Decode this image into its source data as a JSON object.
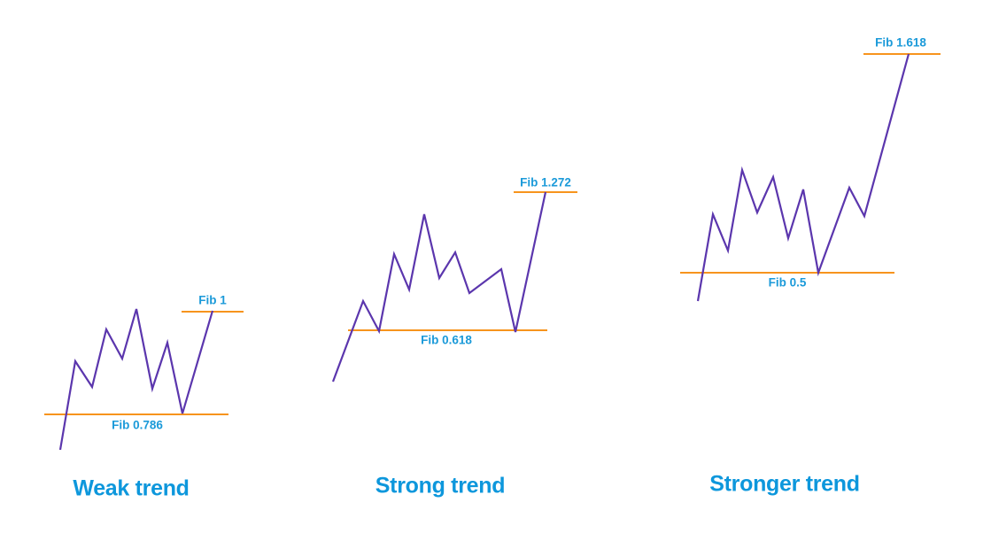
{
  "panels": [
    {
      "title": "Weak trend",
      "support": "Fib 0.786",
      "target": "Fib 1"
    },
    {
      "title": "Strong trend",
      "support": "Fib 0.618",
      "target": "Fib 1.272"
    },
    {
      "title": "Stronger trend",
      "support": "Fib 0.5",
      "target": "Fib 1.618"
    }
  ]
}
